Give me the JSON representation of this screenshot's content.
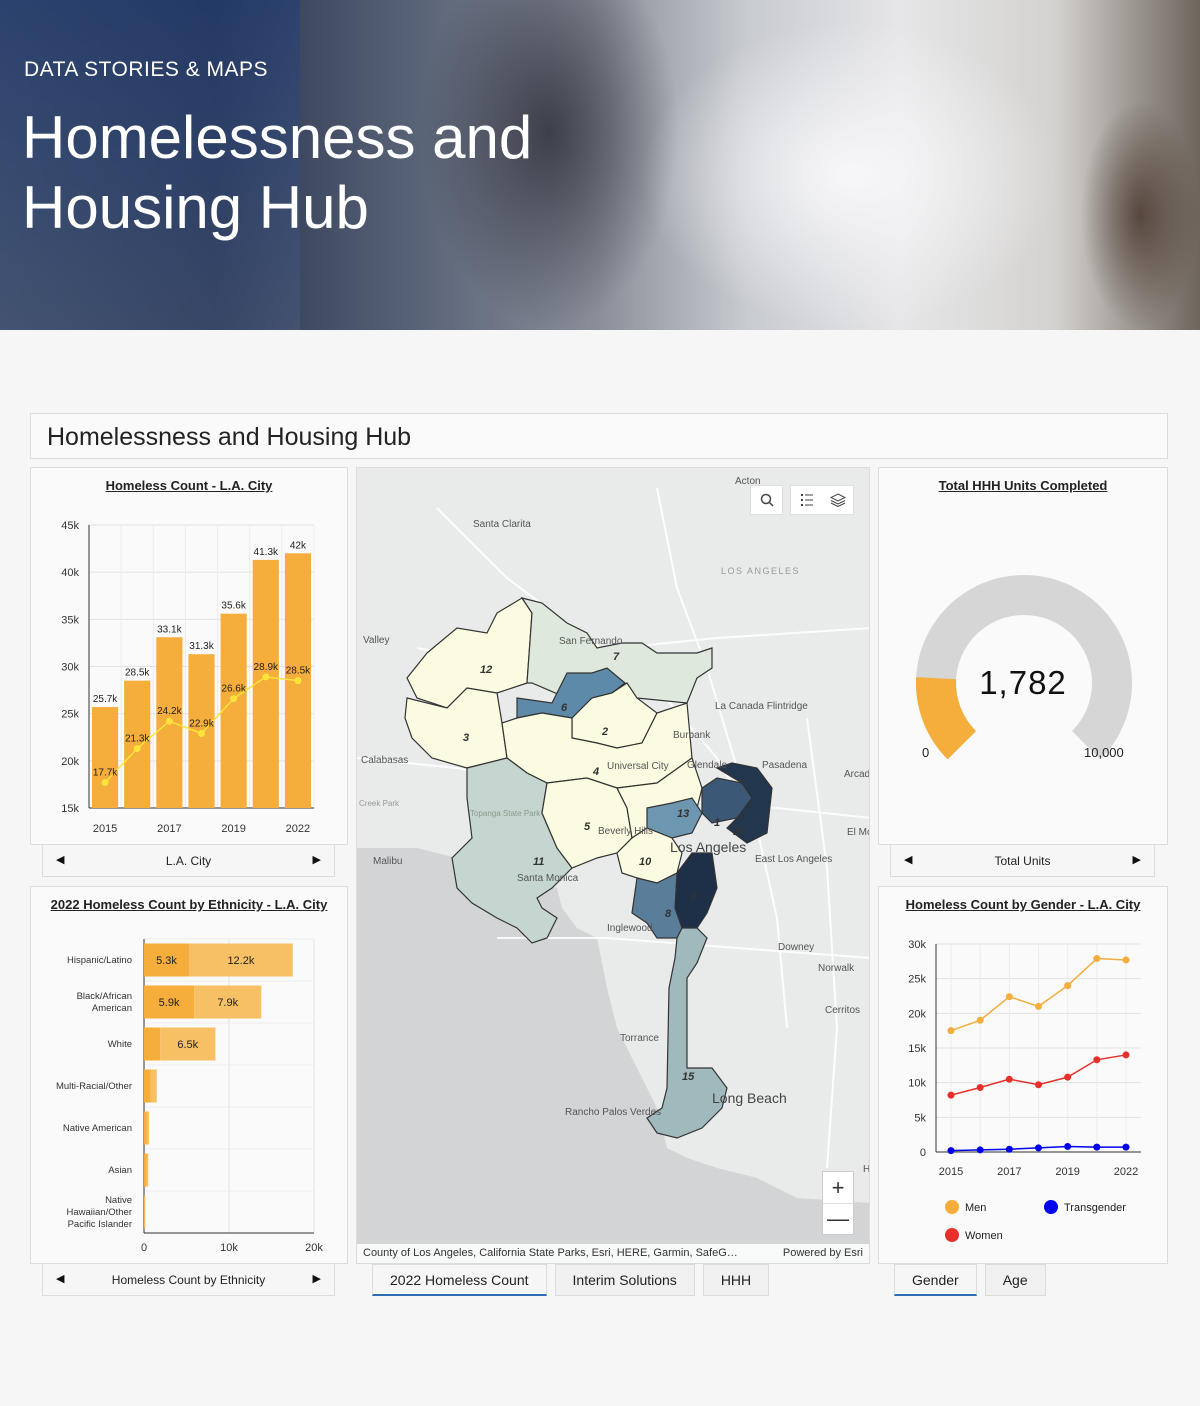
{
  "hero": {
    "kicker": "DATA STORIES & MAPS",
    "title": "Homelessness and Housing Hub"
  },
  "header": {
    "title": "Homelessness and Housing Hub"
  },
  "colors": {
    "orange": "#f5ad3c",
    "light_orange": "#f7c064",
    "yellow": "#ffe33a",
    "gray_track": "#d6d6d6",
    "men": "#f5ad3c",
    "transgender": "#0000ee",
    "women": "#e8302b"
  },
  "homeless_count": {
    "title": "Homeless Count - L.A. City",
    "nav_label": "L.A. City"
  },
  "ethnicity": {
    "title": "2022 Homeless Count by Ethnicity - L.A. City",
    "nav_label": "Homeless Count by Ethnicity"
  },
  "hhh": {
    "title": "Total HHH Units Completed",
    "value": "1,782",
    "min_label": "0",
    "max_label": "10,000",
    "nav_label": "Total Units"
  },
  "gender": {
    "title": "Homeless Count by Gender - L.A. City"
  },
  "map": {
    "attribution": "County of Los Angeles, California State Parks, Esri, HERE, Garmin, SafeG…",
    "powered_by": "Powered by Esri",
    "zoom_in": "+",
    "zoom_out": "—",
    "places": [
      {
        "name": "Acton"
      },
      {
        "name": "Santa Clarita"
      },
      {
        "name": "LOS ANGELES"
      },
      {
        "name": "San Fernando"
      },
      {
        "name": "Valley"
      },
      {
        "name": "La Canada Flintridge"
      },
      {
        "name": "Burbank"
      },
      {
        "name": "Calabasas"
      },
      {
        "name": "Glendale"
      },
      {
        "name": "Pasadena"
      },
      {
        "name": "Arcad"
      },
      {
        "name": "Universal City"
      },
      {
        "name": "Topanga State Park"
      },
      {
        "name": "Creek Park"
      },
      {
        "name": "Beverly Hills"
      },
      {
        "name": "El Mo"
      },
      {
        "name": "Los Angeles"
      },
      {
        "name": "Malibu"
      },
      {
        "name": "East Los Angeles"
      },
      {
        "name": "Santa Monica"
      },
      {
        "name": "Inglewood"
      },
      {
        "name": "Downey"
      },
      {
        "name": "Norwalk"
      },
      {
        "name": "Cerritos"
      },
      {
        "name": "Torrance"
      },
      {
        "name": "Long Beach"
      },
      {
        "name": "Rancho Palos Verdes"
      },
      {
        "name": "H"
      }
    ],
    "districts": [
      "1",
      "2",
      "3",
      "4",
      "5",
      "6",
      "7",
      "8",
      "9",
      "10",
      "11",
      "12",
      "13",
      "14",
      "15"
    ]
  },
  "tabs_center": [
    {
      "label": "2022 Homeless Count"
    },
    {
      "label": "Interim Solutions"
    },
    {
      "label": "HHH"
    }
  ],
  "tabs_right": [
    {
      "label": "Gender"
    },
    {
      "label": "Age"
    }
  ],
  "chart_data": [
    {
      "type": "bar",
      "title": "Homeless Count - L.A. City",
      "categories": [
        "2015",
        "2016",
        "2017",
        "2018",
        "2019",
        "2020",
        "2022"
      ],
      "x_tick_labels": [
        "2015",
        "2017",
        "2019",
        "2022"
      ],
      "series": [
        {
          "name": "Total",
          "kind": "bar",
          "values": [
            25.7,
            28.5,
            33.1,
            31.3,
            35.6,
            41.3,
            42
          ],
          "labels": [
            "25.7k",
            "28.5k",
            "33.1k",
            "31.3k",
            "35.6k",
            "41.3k",
            "42k"
          ]
        },
        {
          "name": "Unsheltered",
          "kind": "line",
          "values": [
            17.7,
            21.3,
            24.2,
            22.9,
            26.6,
            28.9,
            28.5
          ],
          "labels": [
            "17.7k",
            "21.3k",
            "24.2k",
            "22.9k",
            "26.6k",
            "28.9k",
            "28.5k"
          ]
        }
      ],
      "ylim": [
        15,
        45
      ],
      "y_ticks": [
        "15k",
        "20k",
        "25k",
        "30k",
        "35k",
        "40k",
        "45k"
      ],
      "y_tick_values": [
        15,
        20,
        25,
        30,
        35,
        40,
        45
      ]
    },
    {
      "type": "bar",
      "orientation": "horizontal",
      "title": "2022 Homeless Count by Ethnicity - L.A. City",
      "categories": [
        "Hispanic/Latino",
        "Black/African American",
        "White",
        "Multi-Racial/Other",
        "Native American",
        "Asian",
        "Native Hawaiian/Other Pacific Islander"
      ],
      "series": [
        {
          "name": "Sheltered",
          "values": [
            5.3,
            5.9,
            1.9,
            0.8,
            0.3,
            0.3,
            0.1
          ],
          "labels": [
            "5.3k",
            "5.9k",
            "",
            "",
            "",
            "",
            ""
          ]
        },
        {
          "name": "Unsheltered",
          "values": [
            12.2,
            7.9,
            6.5,
            0.7,
            0.3,
            0.2,
            0.05
          ],
          "labels": [
            "12.2k",
            "7.9k",
            "6.5k",
            "",
            "",
            "",
            ""
          ]
        }
      ],
      "xlim": [
        0,
        20
      ],
      "x_ticks": [
        "0",
        "10k",
        "20k"
      ],
      "x_tick_values": [
        0,
        10,
        20
      ]
    },
    {
      "type": "gauge",
      "title": "Total HHH Units Completed",
      "value": 1782,
      "min": 0,
      "max": 10000
    },
    {
      "type": "line",
      "title": "Homeless Count by Gender - L.A. City",
      "x": [
        "2015",
        "2016",
        "2017",
        "2018",
        "2019",
        "2020",
        "2022"
      ],
      "x_tick_labels": [
        "2015",
        "2017",
        "2019",
        "2022"
      ],
      "series": [
        {
          "name": "Men",
          "values": [
            17.5,
            19,
            22.4,
            21,
            24,
            27.9,
            27.7
          ]
        },
        {
          "name": "Women",
          "values": [
            8.2,
            9.3,
            10.5,
            9.7,
            10.8,
            13.3,
            14
          ]
        },
        {
          "name": "Transgender",
          "values": [
            0.2,
            0.3,
            0.4,
            0.6,
            0.8,
            0.7,
            0.7
          ]
        }
      ],
      "ylim": [
        0,
        30
      ],
      "y_ticks": [
        "0",
        "5k",
        "10k",
        "15k",
        "20k",
        "25k",
        "30k"
      ],
      "y_tick_values": [
        0,
        5,
        10,
        15,
        20,
        25,
        30
      ],
      "legend": [
        "Men",
        "Transgender",
        "Women"
      ]
    }
  ]
}
